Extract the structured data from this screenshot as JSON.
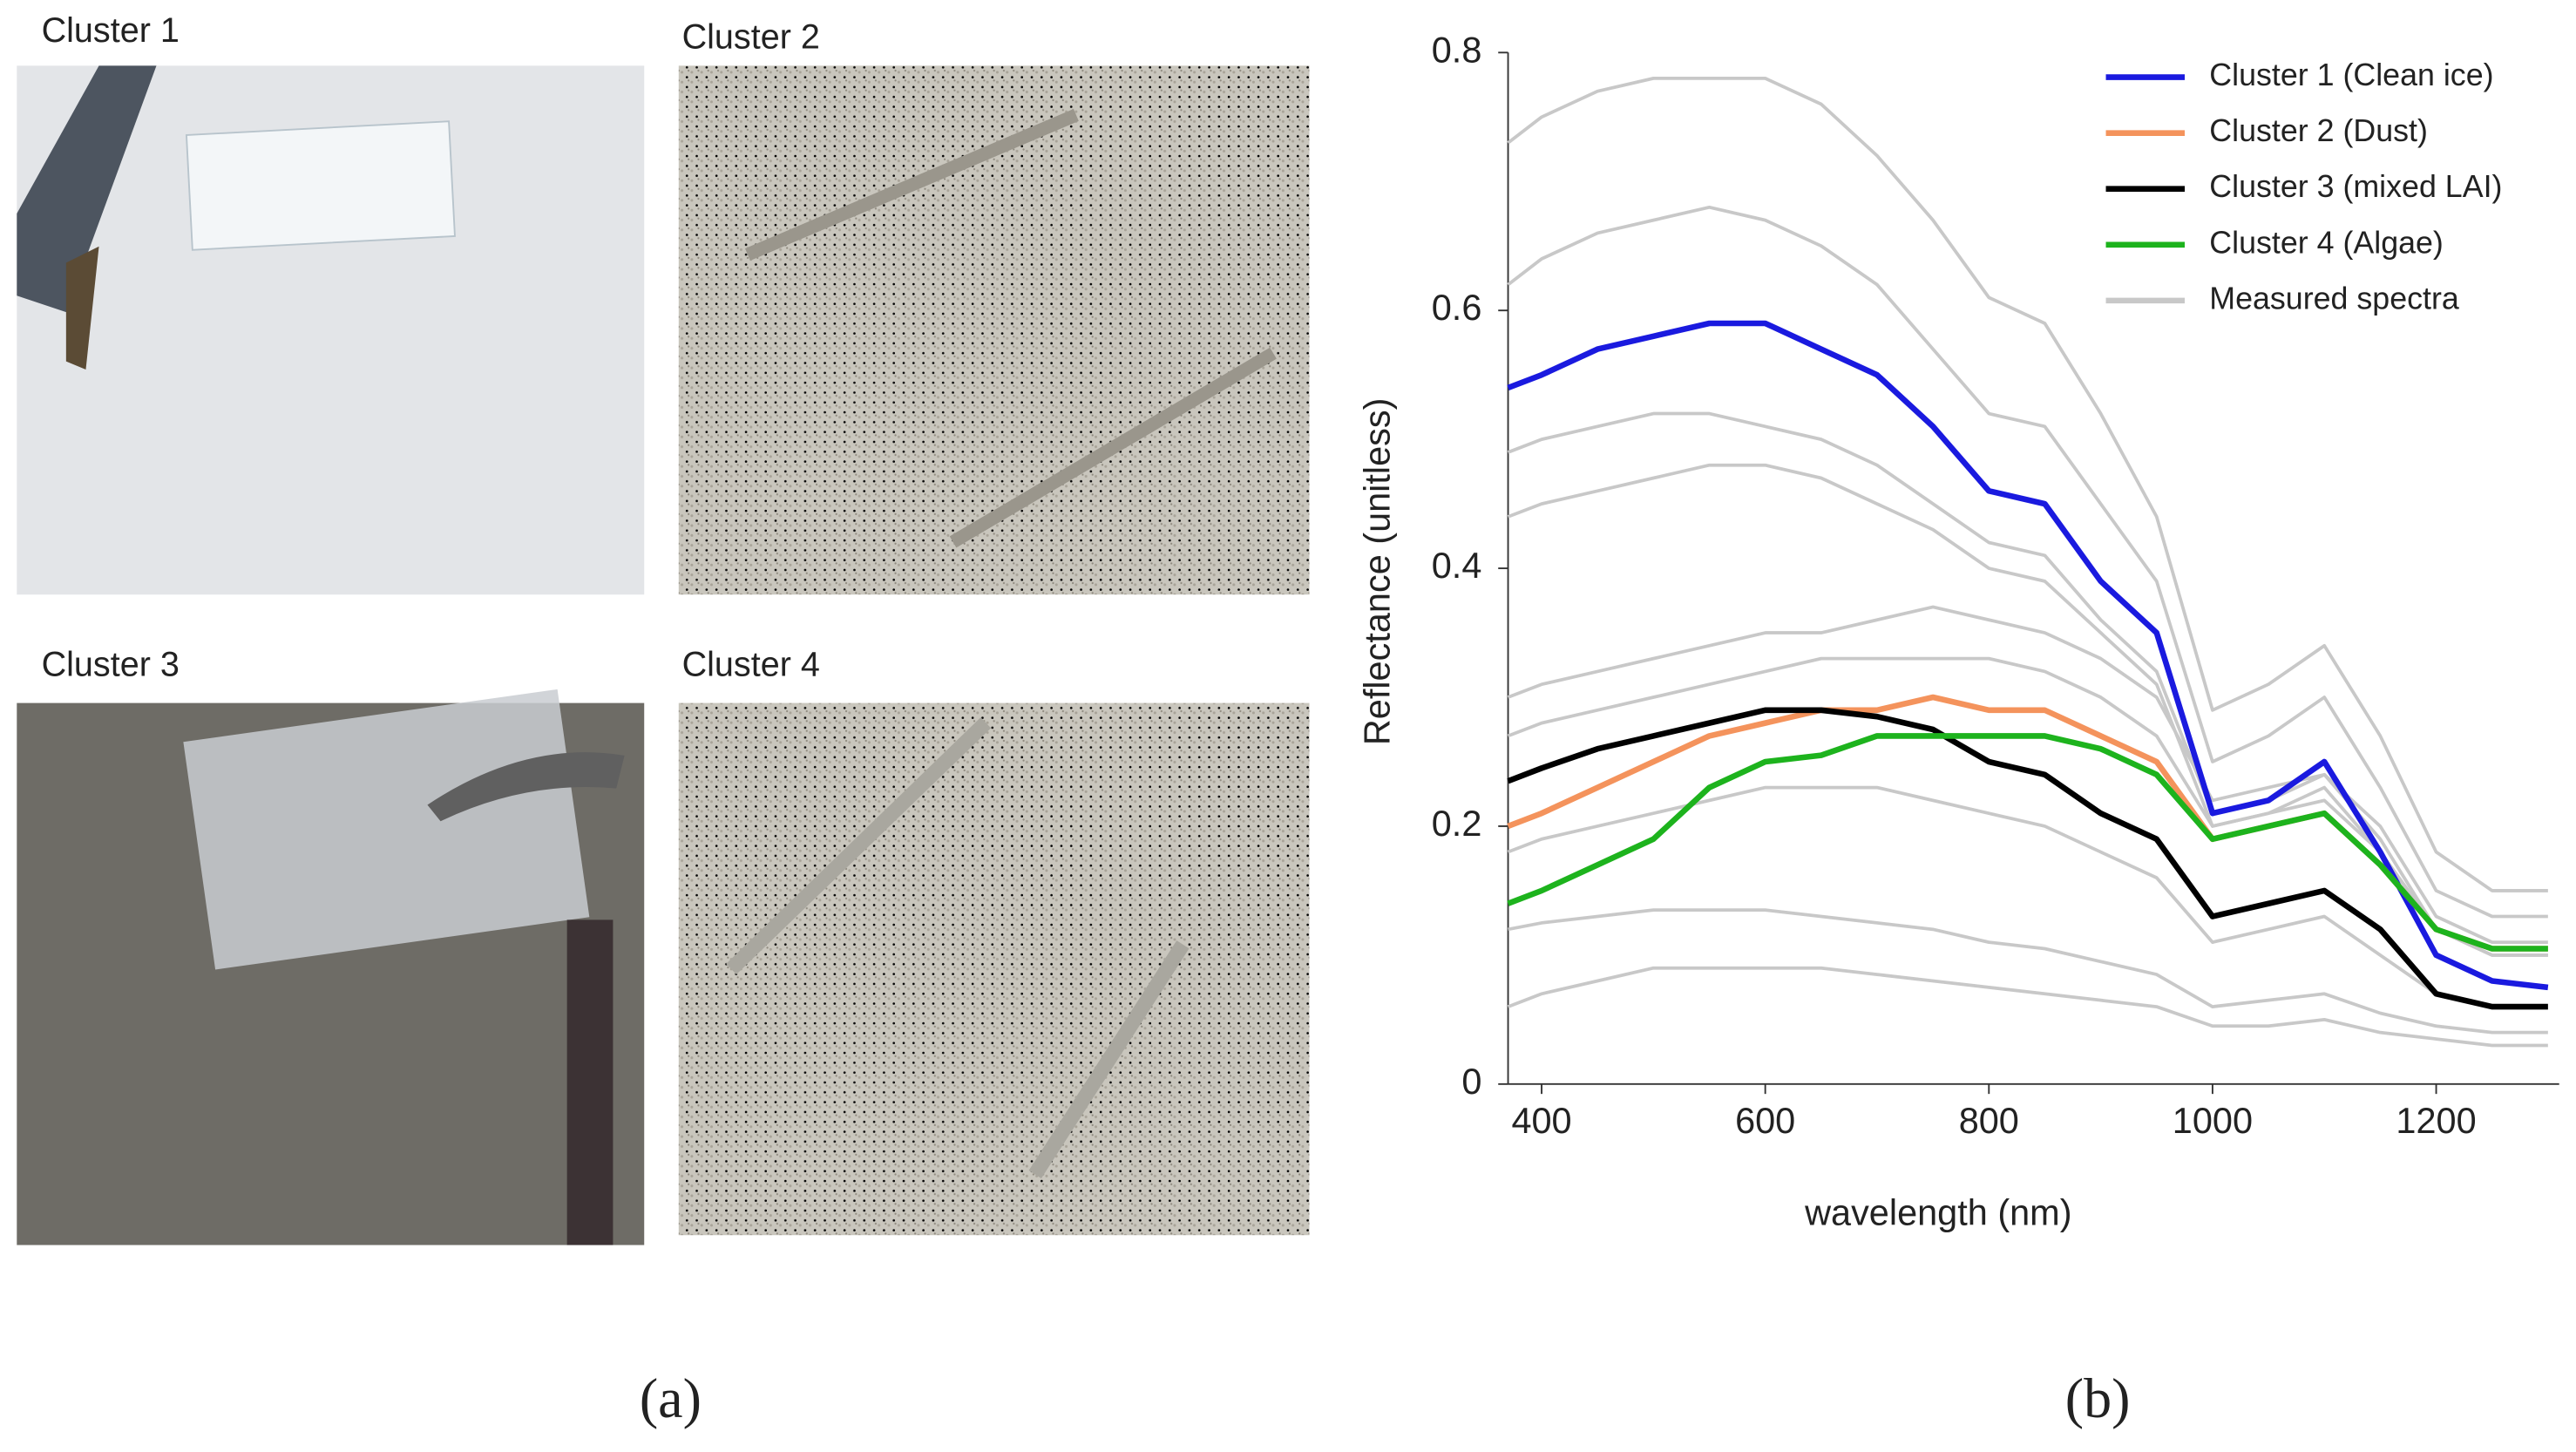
{
  "panels": {
    "photos": [
      "Cluster 1",
      "Cluster 2",
      "Cluster 3",
      "Cluster 4"
    ],
    "letters": [
      "(a)",
      "(b)"
    ]
  },
  "chart_data": {
    "type": "line",
    "x": [
      370,
      400,
      450,
      500,
      550,
      600,
      650,
      700,
      750,
      800,
      850,
      900,
      950,
      1000,
      1050,
      1100,
      1150,
      1200,
      1250,
      1300
    ],
    "series": [
      {
        "name": "Cluster 1 (Clean ice)",
        "color": "#1a1adf",
        "values": [
          0.54,
          0.55,
          0.57,
          0.58,
          0.59,
          0.59,
          0.57,
          0.55,
          0.51,
          0.46,
          0.45,
          0.39,
          0.35,
          0.21,
          0.22,
          0.25,
          0.18,
          0.1,
          0.08,
          0.075
        ]
      },
      {
        "name": "Cluster 2 (Dust)",
        "color": "#f4935c",
        "values": [
          0.2,
          0.21,
          0.23,
          0.25,
          0.27,
          0.28,
          0.29,
          0.29,
          0.3,
          0.29,
          0.29,
          0.27,
          0.25,
          0.19,
          0.2,
          0.21,
          0.17,
          0.12,
          0.105,
          0.105
        ]
      },
      {
        "name": "Cluster 3 (mixed LAI)",
        "color": "#000000",
        "values": [
          0.235,
          0.245,
          0.26,
          0.27,
          0.28,
          0.29,
          0.29,
          0.285,
          0.275,
          0.25,
          0.24,
          0.21,
          0.19,
          0.13,
          0.14,
          0.15,
          0.12,
          0.07,
          0.06,
          0.06
        ]
      },
      {
        "name": "Cluster 4 (Algae)",
        "color": "#1db31d",
        "values": [
          0.14,
          0.15,
          0.17,
          0.19,
          0.23,
          0.25,
          0.255,
          0.27,
          0.27,
          0.27,
          0.27,
          0.26,
          0.24,
          0.19,
          0.2,
          0.21,
          0.17,
          0.12,
          0.105,
          0.105
        ]
      }
    ],
    "measured_spectra": {
      "name": "Measured spectra",
      "color": "#c8c8c8",
      "lines": [
        [
          0.73,
          0.75,
          0.77,
          0.78,
          0.78,
          0.78,
          0.76,
          0.72,
          0.67,
          0.61,
          0.59,
          0.52,
          0.44,
          0.29,
          0.31,
          0.34,
          0.27,
          0.18,
          0.15,
          0.15
        ],
        [
          0.62,
          0.64,
          0.66,
          0.67,
          0.68,
          0.67,
          0.65,
          0.62,
          0.57,
          0.52,
          0.51,
          0.45,
          0.39,
          0.25,
          0.27,
          0.3,
          0.23,
          0.15,
          0.13,
          0.13
        ],
        [
          0.49,
          0.5,
          0.51,
          0.52,
          0.52,
          0.51,
          0.5,
          0.48,
          0.45,
          0.42,
          0.41,
          0.36,
          0.32,
          0.21,
          0.22,
          0.24,
          0.19,
          0.12,
          0.1,
          0.1
        ],
        [
          0.44,
          0.45,
          0.46,
          0.47,
          0.48,
          0.48,
          0.47,
          0.45,
          0.43,
          0.4,
          0.39,
          0.35,
          0.31,
          0.2,
          0.21,
          0.23,
          0.18,
          0.12,
          0.1,
          0.1
        ],
        [
          0.3,
          0.31,
          0.32,
          0.33,
          0.34,
          0.35,
          0.35,
          0.36,
          0.37,
          0.36,
          0.35,
          0.33,
          0.3,
          0.22,
          0.23,
          0.24,
          0.2,
          0.13,
          0.11,
          0.11
        ],
        [
          0.27,
          0.28,
          0.29,
          0.3,
          0.31,
          0.32,
          0.33,
          0.33,
          0.33,
          0.33,
          0.32,
          0.3,
          0.27,
          0.2,
          0.21,
          0.22,
          0.18,
          0.12,
          0.1,
          0.1
        ],
        [
          0.18,
          0.19,
          0.2,
          0.21,
          0.22,
          0.23,
          0.23,
          0.23,
          0.22,
          0.21,
          0.2,
          0.18,
          0.16,
          0.11,
          0.12,
          0.13,
          0.1,
          0.07,
          0.06,
          0.06
        ],
        [
          0.12,
          0.125,
          0.13,
          0.135,
          0.135,
          0.135,
          0.13,
          0.125,
          0.12,
          0.11,
          0.105,
          0.095,
          0.085,
          0.06,
          0.065,
          0.07,
          0.055,
          0.045,
          0.04,
          0.04
        ],
        [
          0.06,
          0.07,
          0.08,
          0.09,
          0.09,
          0.09,
          0.09,
          0.085,
          0.08,
          0.075,
          0.07,
          0.065,
          0.06,
          0.045,
          0.045,
          0.05,
          0.04,
          0.035,
          0.03,
          0.03
        ]
      ]
    },
    "xlabel": "wavelength (nm)",
    "ylabel": "Reflectance (unitless)",
    "xlim": [
      370,
      1310
    ],
    "ylim": [
      0,
      0.8
    ],
    "xticks": [
      400,
      600,
      800,
      1000,
      1200
    ],
    "yticks": [
      0,
      0.2,
      0.4,
      0.6,
      0.8
    ],
    "legend": "upper right"
  }
}
